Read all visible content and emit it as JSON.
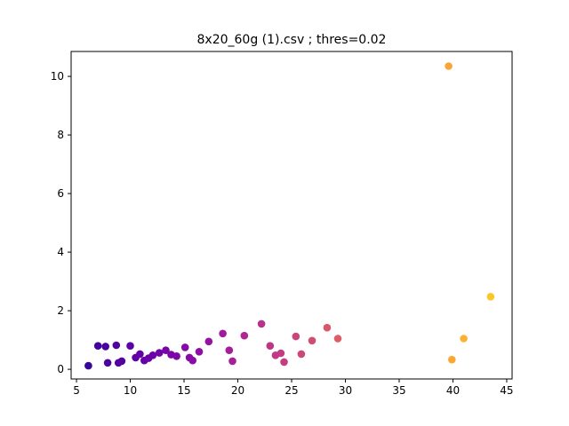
{
  "chart_data": {
    "type": "scatter",
    "title": "8x20_60g (1).csv ; thres=0.02",
    "xlabel": "",
    "ylabel": "",
    "xlim": [
      4.5,
      45.5
    ],
    "ylim": [
      -0.33,
      10.85
    ],
    "xticks": [
      5,
      10,
      15,
      20,
      25,
      30,
      35,
      40,
      45
    ],
    "yticks": [
      0,
      2,
      4,
      6,
      8,
      10
    ],
    "colormap": "plasma",
    "grid": false,
    "legend": "none",
    "points": [
      {
        "x": 6.1,
        "y": 0.12
      },
      {
        "x": 7.0,
        "y": 0.8
      },
      {
        "x": 7.7,
        "y": 0.78
      },
      {
        "x": 7.9,
        "y": 0.22
      },
      {
        "x": 8.7,
        "y": 0.82
      },
      {
        "x": 8.9,
        "y": 0.22
      },
      {
        "x": 9.2,
        "y": 0.28
      },
      {
        "x": 10.0,
        "y": 0.8
      },
      {
        "x": 10.5,
        "y": 0.4
      },
      {
        "x": 10.9,
        "y": 0.52
      },
      {
        "x": 11.3,
        "y": 0.3
      },
      {
        "x": 11.7,
        "y": 0.38
      },
      {
        "x": 12.1,
        "y": 0.48
      },
      {
        "x": 12.7,
        "y": 0.56
      },
      {
        "x": 13.3,
        "y": 0.65
      },
      {
        "x": 13.8,
        "y": 0.5
      },
      {
        "x": 14.3,
        "y": 0.45
      },
      {
        "x": 15.1,
        "y": 0.75
      },
      {
        "x": 15.5,
        "y": 0.4
      },
      {
        "x": 15.8,
        "y": 0.3
      },
      {
        "x": 16.4,
        "y": 0.6
      },
      {
        "x": 17.3,
        "y": 0.95
      },
      {
        "x": 18.6,
        "y": 1.22
      },
      {
        "x": 19.2,
        "y": 0.65
      },
      {
        "x": 19.5,
        "y": 0.28
      },
      {
        "x": 20.6,
        "y": 1.15
      },
      {
        "x": 22.2,
        "y": 1.55
      },
      {
        "x": 23.0,
        "y": 0.8
      },
      {
        "x": 23.5,
        "y": 0.48
      },
      {
        "x": 24.0,
        "y": 0.55
      },
      {
        "x": 24.3,
        "y": 0.25
      },
      {
        "x": 25.4,
        "y": 1.12
      },
      {
        "x": 25.9,
        "y": 0.52
      },
      {
        "x": 26.9,
        "y": 0.98
      },
      {
        "x": 28.3,
        "y": 1.42
      },
      {
        "x": 29.3,
        "y": 1.05
      },
      {
        "x": 39.6,
        "y": 10.35
      },
      {
        "x": 39.9,
        "y": 0.33
      },
      {
        "x": 41.0,
        "y": 1.05
      },
      {
        "x": 43.5,
        "y": 2.48
      }
    ]
  }
}
